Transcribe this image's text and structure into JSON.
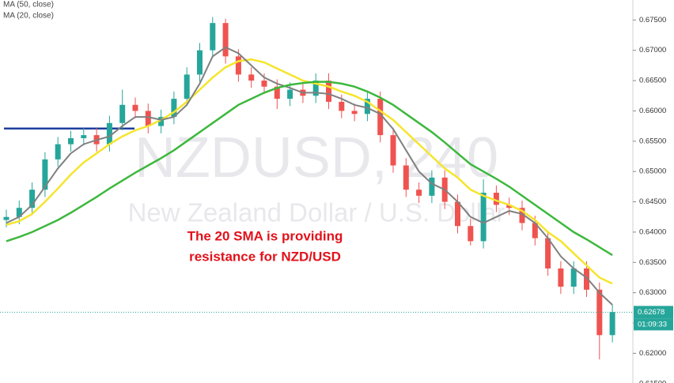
{
  "chart_data": {
    "type": "candlestick",
    "watermark": "NZDUSD, 240",
    "watermark_subtitle": "New Zealand Dollar / U.S. Dollar",
    "annotation": [
      "The 20 SMA is providing",
      "resistance for NZD/USD"
    ],
    "up_color": "#26a69a",
    "down_color": "#ef5350",
    "open": [
      0.642,
      0.6425,
      0.644,
      0.647,
      0.652,
      0.6545,
      0.6555,
      0.656,
      0.6545,
      0.658,
      0.661,
      0.66,
      0.6575,
      0.659,
      0.662,
      0.666,
      0.67,
      0.6745,
      0.669,
      0.666,
      0.665,
      0.664,
      0.662,
      0.6635,
      0.6625,
      0.665,
      0.6615,
      0.66,
      0.6595,
      0.662,
      0.656,
      0.651,
      0.647,
      0.646,
      0.649,
      0.645,
      0.641,
      0.6385,
      0.6465,
      0.6445,
      0.644,
      0.6415,
      0.639,
      0.634,
      0.631,
      0.634,
      0.6305,
      0.623
    ],
    "high": [
      0.6437,
      0.6452,
      0.6482,
      0.6532,
      0.6557,
      0.6567,
      0.6572,
      0.6572,
      0.6592,
      0.6635,
      0.6622,
      0.6612,
      0.6602,
      0.6632,
      0.6672,
      0.6712,
      0.6755,
      0.6752,
      0.6702,
      0.6672,
      0.6662,
      0.6652,
      0.6647,
      0.6647,
      0.6662,
      0.6662,
      0.6627,
      0.6612,
      0.6632,
      0.6632,
      0.6572,
      0.6522,
      0.6482,
      0.6502,
      0.6502,
      0.6462,
      0.6422,
      0.6487,
      0.6477,
      0.6457,
      0.6452,
      0.6427,
      0.6402,
      0.6352,
      0.6352,
      0.6352,
      0.6317,
      0.628
    ],
    "low": [
      0.6408,
      0.6413,
      0.6428,
      0.6458,
      0.6508,
      0.6533,
      0.6543,
      0.6533,
      0.6533,
      0.6568,
      0.6588,
      0.6563,
      0.6563,
      0.6578,
      0.6608,
      0.6648,
      0.6688,
      0.6678,
      0.6648,
      0.6638,
      0.6628,
      0.6603,
      0.6608,
      0.6613,
      0.6613,
      0.6603,
      0.6588,
      0.6583,
      0.6583,
      0.6548,
      0.6498,
      0.6458,
      0.6448,
      0.6448,
      0.6438,
      0.6398,
      0.6378,
      0.6373,
      0.6433,
      0.6428,
      0.6403,
      0.6378,
      0.6328,
      0.6298,
      0.6298,
      0.6293,
      0.619,
      0.6218
    ],
    "close": [
      0.6425,
      0.644,
      0.647,
      0.652,
      0.6545,
      0.6555,
      0.656,
      0.6545,
      0.658,
      0.661,
      0.66,
      0.6575,
      0.659,
      0.662,
      0.666,
      0.67,
      0.6745,
      0.669,
      0.666,
      0.665,
      0.664,
      0.662,
      0.6635,
      0.6625,
      0.665,
      0.6615,
      0.66,
      0.6595,
      0.662,
      0.656,
      0.651,
      0.647,
      0.646,
      0.649,
      0.645,
      0.641,
      0.6385,
      0.6465,
      0.6445,
      0.644,
      0.6415,
      0.639,
      0.634,
      0.631,
      0.634,
      0.6305,
      0.623,
      0.6268
    ],
    "series": [
      {
        "name": "MA (50, close)",
        "color": "#f5e52c",
        "values": [
          0.6412,
          0.6418,
          0.643,
          0.645,
          0.6472,
          0.6495,
          0.6515,
          0.653,
          0.6545,
          0.6558,
          0.6568,
          0.6575,
          0.6585,
          0.6598,
          0.6615,
          0.6635,
          0.6655,
          0.6672,
          0.6682,
          0.6685,
          0.668,
          0.667,
          0.666,
          0.665,
          0.6645,
          0.664,
          0.6632,
          0.6625,
          0.6615,
          0.66,
          0.6585,
          0.6565,
          0.6545,
          0.6525,
          0.6505,
          0.649,
          0.647,
          0.646,
          0.6452,
          0.6445,
          0.6435,
          0.642,
          0.64,
          0.6385,
          0.6365,
          0.6345,
          0.6325,
          0.6315
        ]
      },
      {
        "name": "MA (20, close)",
        "color": "#808080",
        "values": [
          0.6415,
          0.6425,
          0.6445,
          0.6475,
          0.6505,
          0.653,
          0.6545,
          0.6552,
          0.6558,
          0.6575,
          0.659,
          0.659,
          0.6585,
          0.659,
          0.661,
          0.6645,
          0.669,
          0.6705,
          0.6695,
          0.6675,
          0.6655,
          0.6645,
          0.6638,
          0.663,
          0.663,
          0.6628,
          0.662,
          0.661,
          0.6605,
          0.6595,
          0.657,
          0.6535,
          0.65,
          0.648,
          0.647,
          0.645,
          0.6425,
          0.6415,
          0.6425,
          0.6435,
          0.643,
          0.6415,
          0.639,
          0.636,
          0.634,
          0.6325,
          0.63,
          0.628
        ]
      },
      {
        "color": "#3db83d",
        "values": [
          0.6385,
          0.6392,
          0.64,
          0.641,
          0.642,
          0.6432,
          0.6445,
          0.6458,
          0.6472,
          0.6485,
          0.6498,
          0.651,
          0.6522,
          0.6535,
          0.655,
          0.6565,
          0.658,
          0.6595,
          0.661,
          0.662,
          0.663,
          0.6638,
          0.6643,
          0.6646,
          0.6648,
          0.6648,
          0.6645,
          0.664,
          0.6632,
          0.6622,
          0.661,
          0.6595,
          0.658,
          0.6565,
          0.6548,
          0.653,
          0.6512,
          0.65,
          0.6488,
          0.6475,
          0.646,
          0.6445,
          0.643,
          0.6415,
          0.64,
          0.6388,
          0.6375,
          0.6362
        ]
      }
    ],
    "hline": {
      "value": 0.6571,
      "color": "#1f3f9e"
    },
    "last_price": {
      "value": 0.62678,
      "label": "0.62678",
      "color": "#26a69a"
    },
    "countdown": "01:09:33",
    "ylim": [
      0.6151,
      0.6783
    ],
    "yticks": [
      {
        "value": 0.615,
        "label": "0.61500"
      },
      {
        "value": 0.62,
        "label": "0.62000"
      },
      {
        "value": 0.625,
        "label": "0.62500"
      },
      {
        "value": 0.63,
        "label": "0.63000"
      },
      {
        "value": 0.635,
        "label": "0.63500"
      },
      {
        "value": 0.64,
        "label": "0.64000"
      },
      {
        "value": 0.645,
        "label": "0.64500"
      },
      {
        "value": 0.65,
        "label": "0.65000"
      },
      {
        "value": 0.655,
        "label": "0.65500"
      },
      {
        "value": 0.66,
        "label": "0.66000"
      },
      {
        "value": 0.665,
        "label": "0.66500"
      },
      {
        "value": 0.67,
        "label": "0.67000"
      },
      {
        "value": 0.675,
        "label": "0.67500"
      }
    ]
  }
}
